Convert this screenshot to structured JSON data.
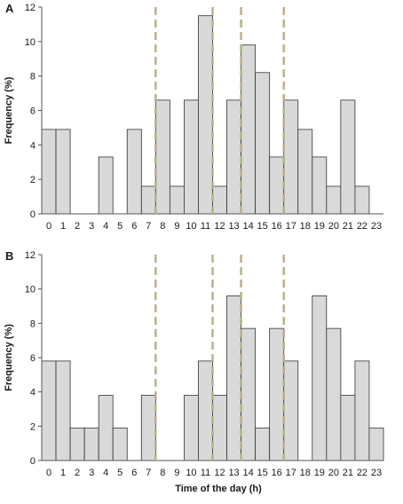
{
  "chart_data": [
    {
      "type": "bar",
      "panel_label": "A",
      "ylabel": "Frequency (%)",
      "xlabel": "",
      "ylim": [
        0,
        12
      ],
      "yticks": [
        0,
        2,
        4,
        6,
        8,
        10,
        12
      ],
      "categories": [
        "0",
        "1",
        "2",
        "3",
        "4",
        "5",
        "6",
        "7",
        "8",
        "9",
        "10",
        "11",
        "12",
        "13",
        "14",
        "15",
        "16",
        "17",
        "18",
        "19",
        "20",
        "21",
        "22",
        "23"
      ],
      "values": [
        4.9,
        4.9,
        0,
        0,
        3.3,
        0,
        4.9,
        1.6,
        6.6,
        1.6,
        6.6,
        11.5,
        1.6,
        6.6,
        9.8,
        8.2,
        3.3,
        6.6,
        4.9,
        3.3,
        1.6,
        6.6,
        1.6,
        0
      ],
      "reference_lines_x": [
        7.5,
        11.5,
        13.5,
        16.5
      ],
      "bar_color": "#d9d9d9",
      "reference_line_color": "#b8ad85",
      "grid": false
    },
    {
      "type": "bar",
      "panel_label": "B",
      "ylabel": "Frequency (%)",
      "xlabel": "Time of the day (h)",
      "ylim": [
        0,
        12
      ],
      "yticks": [
        0,
        2,
        4,
        6,
        8,
        10,
        12
      ],
      "categories": [
        "0",
        "1",
        "2",
        "3",
        "4",
        "5",
        "6",
        "7",
        "8",
        "9",
        "10",
        "11",
        "12",
        "13",
        "14",
        "15",
        "16",
        "17",
        "18",
        "19",
        "20",
        "21",
        "22",
        "23"
      ],
      "values": [
        5.8,
        5.8,
        1.9,
        1.9,
        3.8,
        1.9,
        0,
        3.8,
        0,
        0,
        3.8,
        5.8,
        3.8,
        9.6,
        7.7,
        1.9,
        7.7,
        5.8,
        0,
        9.6,
        7.7,
        3.8,
        5.8,
        1.9
      ],
      "reference_lines_x": [
        7.5,
        11.5,
        13.5,
        16.5
      ],
      "bar_color": "#d9d9d9",
      "reference_line_color": "#b8ad85",
      "grid": false
    }
  ]
}
